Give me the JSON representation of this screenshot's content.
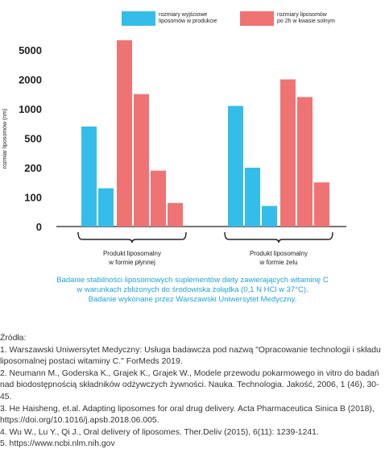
{
  "chart_data": {
    "type": "bar",
    "ylabel": "rozmiar liposomów (nm)",
    "y_ticks": [
      "100",
      "200",
      "500",
      "1000",
      "2000",
      "5000"
    ],
    "y_zero_label": "0",
    "groups": [
      {
        "label_lines": [
          "Produkt liposomalny",
          "w formie płynnej"
        ],
        "initial": [
          700,
          130
        ],
        "after_2h": [
          6000,
          1500,
          190,
          80
        ]
      },
      {
        "label_lines": [
          "Produkt liposomalny",
          "w formie żelu"
        ],
        "initial": [
          1100,
          200,
          70
        ],
        "after_2h": [
          2000,
          1400,
          150
        ]
      }
    ],
    "series": [
      {
        "name": "rozmiary wyjściowe liposomów w produkcie",
        "name_lines": [
          "rozmiary wyjściowe",
          "liposomów w produkcie"
        ],
        "color": "#35bde9"
      },
      {
        "name": "rozmiary liposomów po 2h w kwasie solnym",
        "name_lines": [
          "rozmiary liposomów",
          "po 2h w kwasie solnym"
        ],
        "color": "#f07373"
      }
    ]
  },
  "caption": [
    "Badanie stabilności liposomowych suplementów diety zawierających witaminę C",
    "w warunkach zbliżonych do środowiska żołądka (0,1 N HCl w 37°C).",
    "Badanie wykonane przez Warszawski Uniwersytet Medyczny."
  ],
  "sources": {
    "heading": "Źródła:",
    "items": [
      "1. Warszawski Uniwersytet Medyczny: Usługa badawcza pod nazwą \"Opracowanie technologii i składu liposomalnej postaci witaminy C.\" ForMeds 2019.",
      "2. Neumann M., Goderska K., Grajek K., Grajek W., Modele przewodu pokarmowego in vitro do badań nad biodostępnością składników odżywczych żywności. Nauka. Technologia. Jakość, 2006, 1 (46), 30-45.",
      "3. He Haisheng, et.al. Adapting liposomes for oral drug delivery. Acta Pharmaceutica Sinica B (2018), https://doi.org/10.1016/j.apsb.2018.06.005.",
      "4. Wu W., Lu Y., Qi J., Oral delivery of liposomes. Ther.Deliv (2015), 6(11): 1239-1241.",
      "5. https://www.ncbi.nlm.nih.gov"
    ]
  }
}
